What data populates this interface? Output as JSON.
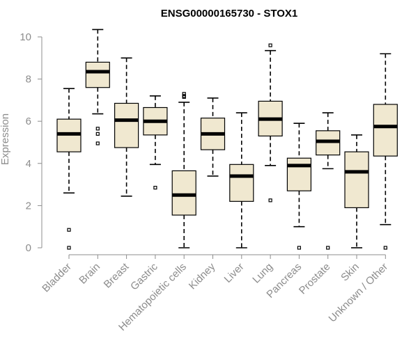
{
  "chart_data": {
    "type": "boxplot",
    "title": "ENSG00000165730 - STOX1",
    "ylabel": "Expression",
    "xlabel": "",
    "ylim": [
      0,
      10.4
    ],
    "yticks": [
      0,
      2,
      4,
      6,
      8,
      10
    ],
    "grid": false,
    "box_fill": "#f0e8d0",
    "categories": [
      "Bladder",
      "Brain",
      "Breast",
      "Gastric",
      "Hematopoietic cells",
      "Kidney",
      "Liver",
      "Lung",
      "Pancreas",
      "Prostate",
      "Skin",
      "Unknown / Other"
    ],
    "boxes": [
      {
        "min": 2.6,
        "q1": 4.55,
        "median": 5.4,
        "q3": 6.1,
        "max": 7.55,
        "outliers": [
          0.85,
          0.0
        ]
      },
      {
        "min": 6.35,
        "q1": 7.6,
        "median": 8.35,
        "q3": 8.8,
        "max": 10.35,
        "outliers": [
          5.65,
          5.4,
          4.95
        ]
      },
      {
        "min": 2.45,
        "q1": 4.75,
        "median": 6.05,
        "q3": 6.85,
        "max": 9.0,
        "outliers": []
      },
      {
        "min": 3.95,
        "q1": 5.35,
        "median": 6.0,
        "q3": 6.65,
        "max": 7.2,
        "outliers": [
          2.85
        ]
      },
      {
        "min": 0.0,
        "q1": 1.55,
        "median": 2.5,
        "q3": 3.65,
        "max": 6.9,
        "outliers": [
          7.15,
          7.3,
          7.2
        ]
      },
      {
        "min": 3.4,
        "q1": 4.65,
        "median": 5.4,
        "q3": 6.15,
        "max": 7.1,
        "outliers": []
      },
      {
        "min": 0.0,
        "q1": 2.2,
        "median": 3.4,
        "q3": 3.95,
        "max": 6.4,
        "outliers": []
      },
      {
        "min": 3.9,
        "q1": 5.3,
        "median": 6.1,
        "q3": 6.95,
        "max": 9.35,
        "outliers": [
          9.6,
          2.25
        ]
      },
      {
        "min": 1.0,
        "q1": 2.7,
        "median": 3.9,
        "q3": 4.25,
        "max": 5.9,
        "outliers": [
          0.0
        ]
      },
      {
        "min": 3.75,
        "q1": 4.4,
        "median": 5.05,
        "q3": 5.55,
        "max": 6.4,
        "outliers": [
          0.0
        ]
      },
      {
        "min": 0.0,
        "q1": 1.9,
        "median": 3.6,
        "q3": 4.55,
        "max": 5.35,
        "outliers": []
      },
      {
        "min": 1.1,
        "q1": 4.35,
        "median": 5.75,
        "q3": 6.8,
        "max": 9.2,
        "outliers": [
          0.0
        ]
      }
    ]
  }
}
